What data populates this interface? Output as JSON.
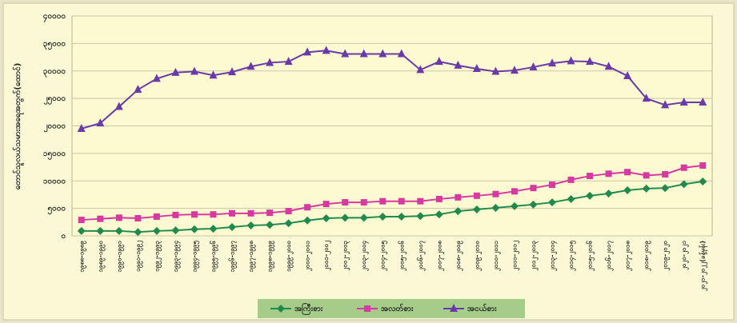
{
  "chart_data": {
    "type": "line",
    "y_label": "တောင်သူလယ်သမားအရေအတွက်(ထောင်)",
    "categories": [
      "၁၉၈၈-၁၉၈၉",
      "၁၉၈၉-၁၉၉၀",
      "၁၉၉၀-၁၉၉၁",
      "၁၉၉၁-၁၉၉၂",
      "၁၉၉၂-၁၉၉၃",
      "၁၉၉၃-၁၉၉၄",
      "၁၉၉၄-၁၉၉၅",
      "၁၉၉၅-၁၉၉၆",
      "၁၉၉၆-၁၉၉၇",
      "၁၉၉၇-၁၉၉၈",
      "၁၉၉၈-၁၉၉၉",
      "၁၉၉၉-၂၀၀၀",
      "၂၀၀၀-၂၀၀၁",
      "၂၀၀၁-၂၀၀၂",
      "၂၀၀၂-၂၀၀၃",
      "၂၀၀၃-၂၀၀၄",
      "၂၀၀၄-၂၀၀၅",
      "၂၀၀၅-၂၀၀၆",
      "၂၀၀၆-၂၀၀၇",
      "၂၀၀၇-၂၀၀၈",
      "၂၀၀၈-၂၀၀၉",
      "၂၀၀၉-၂၀၁၀",
      "၂၀၁၀-၂၀၁၁",
      "၂၀၁၁-၂၀၁၂",
      "၂၀၁၂-၂၀၁၃",
      "၂၀၁၃-၂၀၁၄",
      "၂၀၁၄-၂၀၁၅",
      "၂၀၁၅-၂၀၁၆",
      "၂၀၁၆-၂၀၁၇",
      "၂၀၁၇-၂၀၁၈",
      "၂၀၁၈-၂၀၁၉",
      "၂၀၁၉-၂၀၂၀",
      "၂၀၂၀-၂၀၂၁",
      "၂၀၂၁-၂၀၂၂(ခန့်မှန်း)"
    ],
    "series": [
      {
        "name": "အကြီးစား",
        "color": "#1f8a4c",
        "marker": "diamond",
        "values": [
          900,
          900,
          900,
          700,
          900,
          1000,
          1200,
          1300,
          1600,
          1900,
          2000,
          2300,
          2800,
          3200,
          3300,
          3300,
          3500,
          3500,
          3600,
          3900,
          4500,
          4800,
          5100,
          5400,
          5700,
          6100,
          6700,
          7300,
          7700,
          8300,
          8600,
          8700,
          9400,
          9900
        ]
      },
      {
        "name": "အလတ်စား",
        "color": "#d63aa0",
        "marker": "square",
        "values": [
          2900,
          3100,
          3300,
          3200,
          3500,
          3800,
          3900,
          3900,
          4100,
          4100,
          4200,
          4500,
          5200,
          5800,
          6100,
          6100,
          6300,
          6300,
          6300,
          6700,
          7000,
          7300,
          7600,
          8100,
          8700,
          9300,
          10200,
          10900,
          11300,
          11600,
          11000,
          11200,
          12400,
          12800
        ]
      },
      {
        "name": "အငယ်စား",
        "color": "#6a3aa8",
        "marker": "triangle",
        "values": [
          19500,
          20500,
          23500,
          26600,
          28600,
          29700,
          29900,
          29200,
          29800,
          30800,
          31500,
          31700,
          33400,
          33700,
          33100,
          33100,
          33100,
          33100,
          30200,
          31700,
          31000,
          30400,
          29900,
          30100,
          30700,
          31400,
          31800,
          31700,
          30800,
          29100,
          25000,
          23800,
          24300,
          24300
        ]
      }
    ],
    "ylim": [
      0,
      40000
    ],
    "yticks": [
      {
        "value": 0,
        "label": "၀"
      },
      {
        "value": 5000,
        "label": "၅၀၀၀"
      },
      {
        "value": 10000,
        "label": "၁၀၀၀၀"
      },
      {
        "value": 15000,
        "label": "၁၅၀၀၀"
      },
      {
        "value": 20000,
        "label": "၂၀၀၀၀"
      },
      {
        "value": 25000,
        "label": "၂၅၀၀၀"
      },
      {
        "value": 30000,
        "label": "၃၀၀၀၀"
      },
      {
        "value": 35000,
        "label": "၃၅၀၀၀"
      },
      {
        "value": 40000,
        "label": "၄၀၀၀၀"
      }
    ],
    "grid": true,
    "legend": "bottom"
  }
}
